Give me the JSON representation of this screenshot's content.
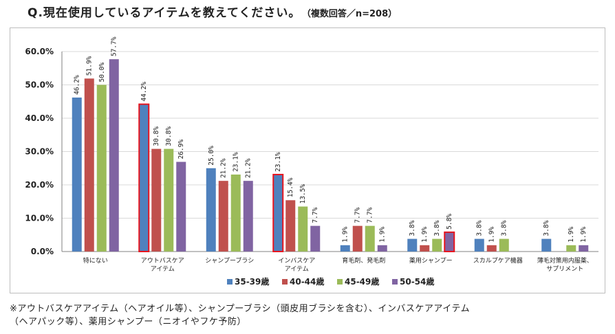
{
  "title": {
    "question": "Q.現在使用しているアイテムを教えてください。",
    "note": "（複数回答／n=208）"
  },
  "footnote": {
    "line1": "※アウトバスケアアイテム（ヘアオイル等）、シャンプーブラシ（頭皮用ブラシを含む）、インバスケアアイテム",
    "line2": "（ヘアパック等）、薬用シャンプー（ニオイやフケ予防）"
  },
  "colors": {
    "series": [
      "#4f81bd",
      "#c0504d",
      "#9bbb59",
      "#8064a2"
    ],
    "highlight_border": "#e8141e",
    "grid": "#d9d9d9",
    "axis": "#808080"
  },
  "chart_data": {
    "type": "bar",
    "categories": [
      "特にない",
      "アウトバスケア\nアイテム",
      "シャンプーブラシ",
      "インバスケア\nアイテム",
      "育毛剤、発毛剤",
      "薬用シャンプー",
      "スカルプケア機器",
      "薄毛対策用内服薬、\nサプリメント"
    ],
    "series": [
      {
        "name": "35-39歳",
        "values": [
          46.2,
          44.2,
          25.0,
          23.1,
          1.9,
          3.8,
          3.8,
          3.8
        ],
        "labels": [
          "46.2%",
          "44.2%",
          "25.0%",
          "23.1%",
          "1.9%",
          "3.8%",
          "3.8%",
          "3.8%"
        ]
      },
      {
        "name": "40-44歳",
        "values": [
          51.9,
          30.8,
          21.2,
          15.4,
          7.7,
          1.9,
          1.9,
          0
        ],
        "labels": [
          "51.9%",
          "30.8%",
          "21.2%",
          "15.4%",
          "7.7%",
          "1.9%",
          "1.9%",
          ""
        ]
      },
      {
        "name": "45-49歳",
        "values": [
          50.0,
          30.8,
          23.1,
          13.5,
          7.7,
          3.8,
          3.8,
          1.9
        ],
        "labels": [
          "50.0%",
          "30.8%",
          "23.1%",
          "13.5%",
          "7.7%",
          "3.8%",
          "3.8%",
          "1.9%"
        ]
      },
      {
        "name": "50-54歳",
        "values": [
          57.7,
          26.9,
          21.2,
          7.7,
          1.9,
          5.8,
          0,
          1.9
        ],
        "labels": [
          "57.7%",
          "26.9%",
          "21.2%",
          "7.7%",
          "1.9%",
          "5.8%",
          "",
          "1.9%"
        ]
      }
    ],
    "highlighted": [
      [
        1,
        0
      ],
      [
        3,
        0
      ],
      [
        5,
        3
      ]
    ],
    "yticks": [
      "0.0%",
      "10.0%",
      "20.0%",
      "30.0%",
      "40.0%",
      "50.0%",
      "60.0%"
    ],
    "ylim": [
      0,
      60
    ],
    "grid": true,
    "legend_position": "bottom"
  }
}
